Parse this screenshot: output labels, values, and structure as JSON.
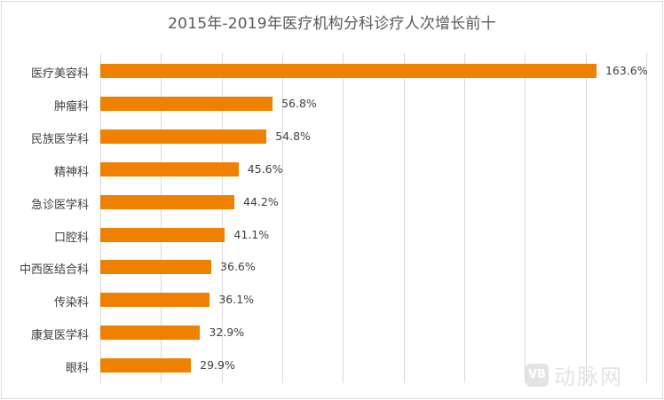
{
  "chart_data": {
    "type": "bar",
    "orientation": "horizontal",
    "title": "2015年-2019年医疗机构分科诊疗人次增长前十",
    "categories": [
      "医疗美容科",
      "肿瘤科",
      "民族医学科",
      "精神科",
      "急诊医学科",
      "口腔科",
      "中西医结合科",
      "传染科",
      "康复医学科",
      "眼科"
    ],
    "values": [
      163.6,
      56.8,
      54.8,
      45.6,
      44.2,
      41.1,
      36.6,
      36.1,
      32.9,
      29.9
    ],
    "labels": [
      "163.6%",
      "56.8%",
      "54.8%",
      "45.6%",
      "44.2%",
      "41.1%",
      "36.6%",
      "36.1%",
      "32.9%",
      "29.9%"
    ],
    "xlabel": "",
    "ylabel": "",
    "xlim": [
      0,
      180
    ],
    "grid": true,
    "bar_color": "#f08000",
    "legend": null
  },
  "watermark": {
    "logo": "VB",
    "text": "动脉网"
  }
}
